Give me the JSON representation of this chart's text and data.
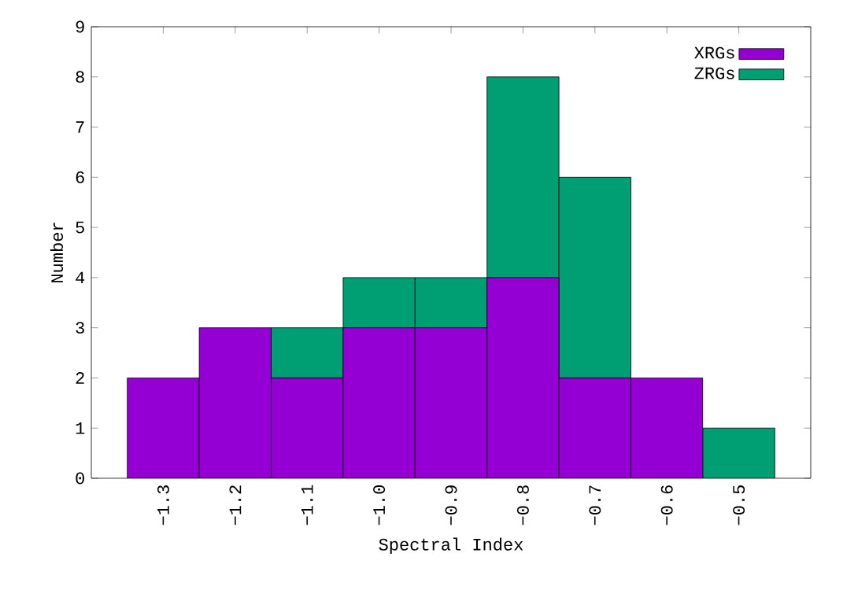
{
  "chart_data": {
    "type": "bar",
    "stacked": true,
    "xlabel": "Spectral Index",
    "ylabel": "Number",
    "categories": [
      "−1.3",
      "−1.2",
      "−1.1",
      "−1.0",
      "−0.9",
      "−0.8",
      "−0.7",
      "−0.6",
      "−0.5"
    ],
    "series": [
      {
        "name": "XRGs",
        "color": "#9400d3",
        "values": [
          2,
          3,
          2,
          3,
          3,
          4,
          2,
          2,
          0
        ]
      },
      {
        "name": "ZRGs",
        "color": "#009e73",
        "values": [
          0,
          0,
          1,
          1,
          1,
          4,
          4,
          0,
          1
        ]
      }
    ],
    "ylim": [
      0,
      9
    ],
    "yticks": [
      0,
      1,
      2,
      3,
      4,
      5,
      6,
      7,
      8,
      9
    ],
    "legend": "top right"
  }
}
